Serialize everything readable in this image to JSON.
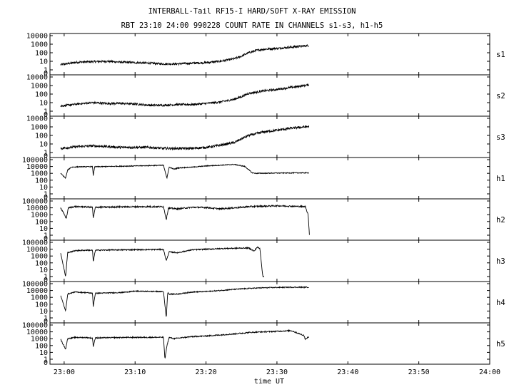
{
  "title": "INTERBALL-Tail RF15-I HARD/SOFT X-RAY EMISSION",
  "subtitle": "RBT 23:10 24:00 990228  COUNT RATE IN CHANNELS s1-s3, h1-h5",
  "xlabel": "time UT",
  "chart_data": {
    "type": "line",
    "title": "INTERBALL-Tail RF15-I HARD/SOFT X-RAY EMISSION",
    "subtitle": "RBT 23:10 24:00 990228  COUNT RATE IN CHANNELS s1-s3, h1-h5",
    "xlabel": "time UT",
    "x_unit": "minutes",
    "xlim": [
      -2,
      60
    ],
    "x_ticks": [
      0,
      10,
      20,
      30,
      40,
      50,
      60
    ],
    "x_tick_labels": [
      "23:00",
      "23:10",
      "23:20",
      "23:30",
      "23:40",
      "23:50",
      "24:00"
    ],
    "y_scale": "log",
    "series": [
      {
        "name": "s1",
        "ylim_decades": [
          0,
          4
        ],
        "y_tick_labels": [
          "1",
          "10",
          "100",
          "1000",
          "10000"
        ],
        "x": [
          -0.5,
          2,
          4,
          6,
          8,
          10,
          12,
          14,
          16,
          18,
          20,
          22,
          24,
          25,
          26,
          27,
          28,
          30,
          32,
          34.5
        ],
        "y": [
          4,
          8,
          9,
          10,
          8,
          7,
          6,
          5,
          5,
          6,
          7,
          10,
          20,
          40,
          100,
          180,
          250,
          320,
          450,
          700
        ],
        "noise": 0.12
      },
      {
        "name": "s2",
        "ylim_decades": [
          0,
          4
        ],
        "y_tick_labels": [
          "1",
          "10",
          "100",
          "1000",
          "10000"
        ],
        "x": [
          -0.5,
          2,
          4,
          6,
          8,
          10,
          12,
          14,
          16,
          18,
          20,
          22,
          24,
          25,
          26,
          27,
          28,
          30,
          32,
          34.5
        ],
        "y": [
          4,
          7,
          10,
          8,
          8,
          7,
          5,
          5,
          6,
          6,
          8,
          12,
          25,
          50,
          120,
          160,
          230,
          350,
          600,
          1200
        ],
        "noise": 0.12
      },
      {
        "name": "s3",
        "ylim_decades": [
          0,
          4
        ],
        "y_tick_labels": [
          "1",
          "10",
          "100",
          "1000",
          "10000"
        ],
        "x": [
          -0.5,
          2,
          4,
          6,
          8,
          10,
          12,
          14,
          16,
          18,
          20,
          22,
          24,
          25,
          26,
          27,
          28,
          30,
          32,
          34.5
        ],
        "y": [
          3,
          5,
          6,
          5,
          4,
          4,
          4,
          3,
          3,
          3,
          4,
          7,
          15,
          40,
          100,
          150,
          250,
          400,
          700,
          1100
        ],
        "noise": 0.14
      },
      {
        "name": "h1",
        "ylim_decades": [
          0,
          5
        ],
        "y_tick_labels": [
          "1",
          "10",
          "100",
          "1000",
          "10000",
          "100000"
        ],
        "x": [
          -0.5,
          0.2,
          0.5,
          1,
          2,
          4,
          4.1,
          4.3,
          6,
          10,
          14,
          14.5,
          14.8,
          15.5,
          16,
          18,
          20,
          24,
          25.5,
          26.5,
          27,
          30,
          34.5
        ],
        "y": [
          1000,
          200,
          3000,
          8000,
          9000,
          9500,
          500,
          9000,
          10000,
          12000,
          15000,
          200,
          8000,
          4000,
          6000,
          8000,
          12000,
          20000,
          10000,
          1200,
          1000,
          1100,
          1200
        ],
        "noise": 0.06
      },
      {
        "name": "h2",
        "ylim_decades": [
          0,
          5
        ],
        "y_tick_labels": [
          "1",
          "10",
          "100",
          "1000",
          "10000",
          "100000"
        ],
        "x": [
          -0.5,
          0.3,
          0.6,
          1.5,
          3,
          4,
          4.1,
          4.4,
          8,
          14,
          14.4,
          14.7,
          16,
          18,
          20,
          22,
          24,
          25,
          26,
          30,
          34,
          34.4,
          34.6
        ],
        "y": [
          10000,
          300,
          10000,
          15000,
          14000,
          12000,
          300,
          12000,
          14000,
          15000,
          200,
          9000,
          7000,
          12000,
          11000,
          7000,
          10000,
          12000,
          15000,
          20000,
          15000,
          1000,
          0.5
        ],
        "noise": 0.1
      },
      {
        "name": "h3",
        "ylim_decades": [
          0,
          5
        ],
        "y_tick_labels": [
          "1",
          "10",
          "100",
          "1000",
          "10000",
          "100000"
        ],
        "x": [
          -0.5,
          0.2,
          0.5,
          1.5,
          3,
          4,
          4.1,
          4.4,
          8,
          14,
          14.4,
          14.8,
          16,
          18,
          22,
          26,
          26.8,
          27.2,
          27.6,
          28,
          28.2
        ],
        "y": [
          3000,
          1,
          3000,
          6000,
          7000,
          7000,
          150,
          7000,
          8000,
          9000,
          200,
          4000,
          3000,
          8000,
          12000,
          15000,
          5000,
          20000,
          12000,
          1,
          1
        ],
        "noise": 0.08
      },
      {
        "name": "h4",
        "ylim_decades": [
          0,
          5
        ],
        "y_tick_labels": [
          "1",
          "10",
          "100",
          "1000",
          "10000",
          "100000"
        ],
        "x": [
          -0.5,
          0.2,
          0.5,
          1.5,
          3,
          4,
          4.1,
          4.4,
          8,
          10,
          14,
          14.4,
          14.6,
          14.8,
          16,
          18,
          20,
          22,
          24,
          26,
          28,
          30,
          32,
          34.5
        ],
        "y": [
          2000,
          10,
          3000,
          6000,
          5000,
          4000,
          50,
          4000,
          5000,
          8000,
          7000,
          1,
          5000,
          3000,
          3000,
          6000,
          7000,
          10000,
          15000,
          20000,
          25000,
          28000,
          30000,
          30000
        ],
        "noise": 0.07
      },
      {
        "name": "h5",
        "ylim_decades": [
          0,
          5
        ],
        "y_tick_labels": [
          "1",
          "10",
          "100",
          "1000",
          "10000",
          "100000"
        ],
        "x": [
          -0.5,
          0.2,
          0.5,
          1.5,
          3,
          4,
          4.1,
          4.4,
          8,
          14,
          14.2,
          14.5,
          14.8,
          15.5,
          16,
          18,
          20,
          22,
          24,
          26,
          28,
          30,
          32,
          33.8,
          34,
          34.5
        ],
        "y": [
          800,
          30,
          1000,
          1500,
          1500,
          1200,
          80,
          1300,
          1500,
          1600,
          1,
          100,
          1500,
          1000,
          1200,
          2000,
          2500,
          3500,
          5000,
          8000,
          10000,
          12000,
          15000,
          3000,
          800,
          2000
        ],
        "noise": 0.08
      }
    ]
  }
}
